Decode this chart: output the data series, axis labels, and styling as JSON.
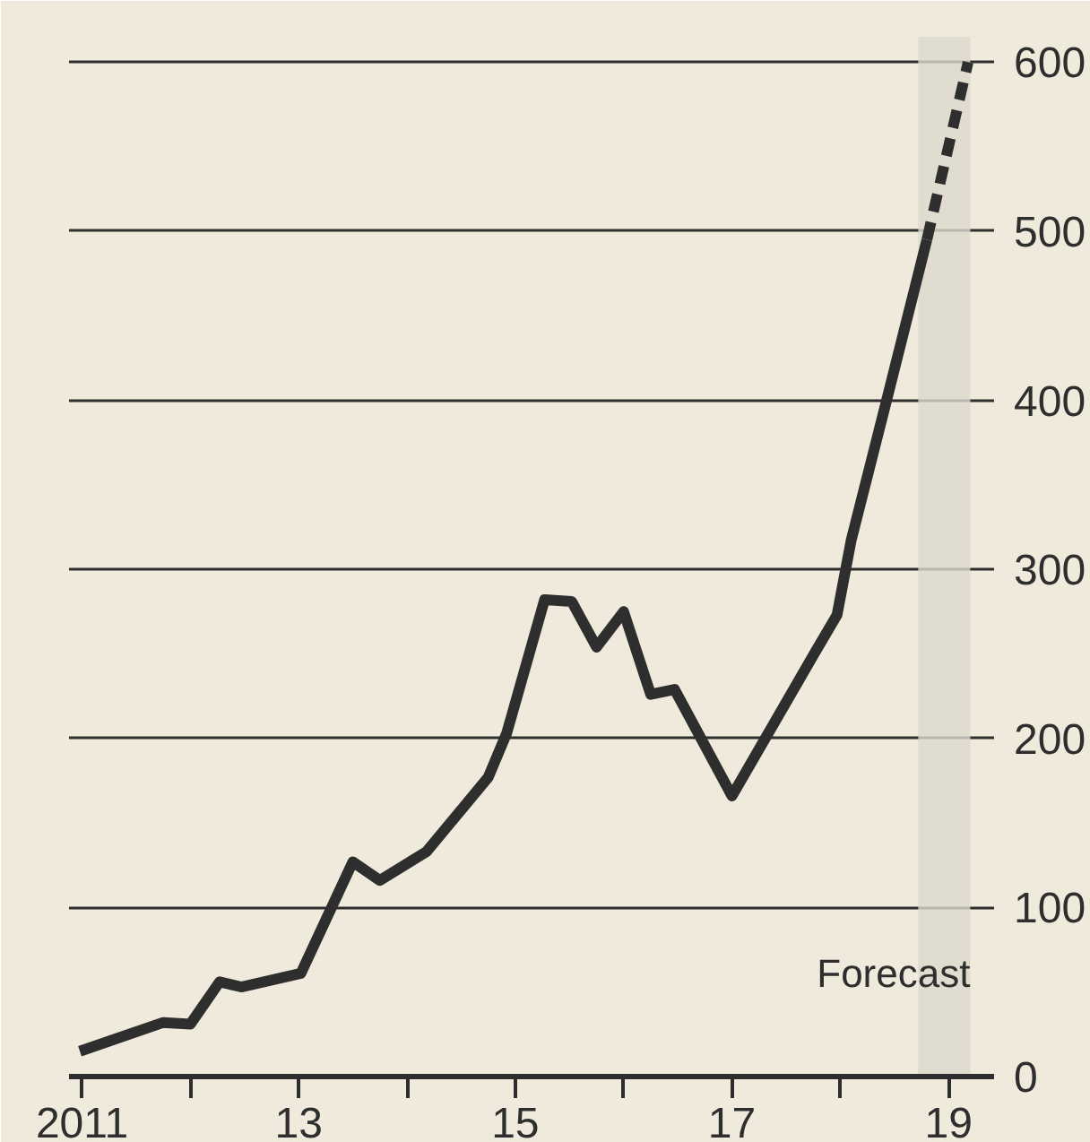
{
  "chart_data": {
    "type": "line",
    "series": [
      {
        "color": "#2e2e2e",
        "line_style": "solid",
        "x": [
          2010.98,
          2011.75,
          2012.0,
          2012.27,
          2012.47,
          2013.02,
          2013.5,
          2013.75,
          2014.18,
          2014.75,
          2014.92,
          2015.27,
          2015.52,
          2015.75,
          2016.0,
          2016.25,
          2016.47,
          2017.0,
          2017.75,
          2017.97,
          2018.1,
          2018.42,
          2018.8
        ],
        "values": [
          15,
          32,
          31,
          56,
          53,
          61,
          127,
          116,
          133,
          177,
          203,
          282,
          281,
          254,
          275,
          226,
          229,
          166,
          249,
          273,
          317,
          398,
          495
        ]
      },
      {
        "color": "#2e2e2e",
        "line_style": "dashed",
        "x": [
          2018.8,
          2019.18
        ],
        "values": [
          495,
          600
        ]
      }
    ],
    "xlim": [
      2010.88,
      2019.42
    ],
    "xticks": [
      {
        "value": 2011,
        "label": "2011"
      },
      {
        "value": 2012,
        "label": null
      },
      {
        "value": 2013,
        "label": "13"
      },
      {
        "value": 2014,
        "label": null
      },
      {
        "value": 2015,
        "label": "15"
      },
      {
        "value": 2016,
        "label": null
      },
      {
        "value": 2017,
        "label": "17"
      },
      {
        "value": 2018,
        "label": null
      },
      {
        "value": 2019,
        "label": "19"
      }
    ],
    "ylim": [
      0,
      615
    ],
    "yticks": [
      0,
      100,
      200,
      300,
      400,
      500,
      600
    ],
    "grid": "y",
    "bands": [
      {
        "axis": "x",
        "from": 2018.72,
        "to": 2019.2,
        "label": "Forecast",
        "color": "#dcd8cc"
      }
    ]
  }
}
